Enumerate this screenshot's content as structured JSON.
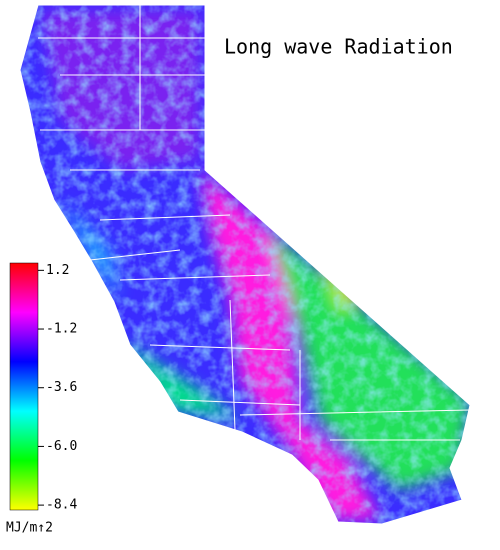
{
  "title": "Long wave Radiation",
  "colorbar": {
    "lim": [
      -8.6,
      1.5
    ],
    "ticks": [
      1.2,
      -1.2,
      -3.6,
      {
        "value": -6,
        "label": "-6.0"
      },
      -8.4
    ],
    "colors": [
      "#ffff00",
      "#00ff00",
      "#00ffff",
      "#0000ff",
      "#ff00ff",
      "#ff0000"
    ],
    "unit": "MJ/m↑2"
  }
}
